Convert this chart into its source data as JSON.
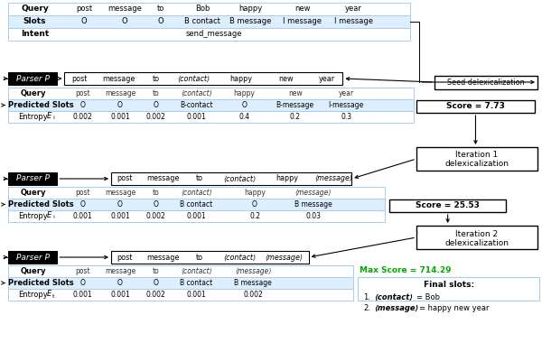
{
  "bg_color": "#ffffff",
  "light_blue": "#ddeeff",
  "dark_blue": "#aaccee",
  "top_table": {
    "query_words": [
      "post",
      "message",
      "to",
      "Bob",
      "happy",
      "new",
      "year"
    ],
    "slots": [
      "O",
      "O",
      "O",
      "B contact",
      "B message",
      "I message",
      "I message"
    ],
    "intent": "send_message"
  },
  "seed": {
    "input_words": [
      "post",
      "message",
      "to",
      "⟨contact⟩",
      "happy",
      "new",
      "year"
    ]
  },
  "iter0": {
    "query_words": [
      "post",
      "message",
      "to",
      "⟨contact⟩",
      "happy",
      "new",
      "year"
    ],
    "pred_slots": [
      "O",
      "O",
      "O",
      "B-contact",
      "O",
      "B-message",
      "I-message"
    ],
    "entropy": [
      "0.002",
      "0.001",
      "0.002",
      "0.001",
      "0.4",
      "0.2",
      "0.3"
    ],
    "score": "Score = 7.73"
  },
  "iter1": {
    "input_words": [
      "post",
      "message",
      "to",
      "⟨contact⟩",
      "happy",
      "⟨message⟩"
    ],
    "query_words": [
      "post",
      "message",
      "to",
      "⟨contact⟩",
      "happy",
      "⟨message⟩"
    ],
    "pred_slots": [
      "O",
      "O",
      "O",
      "B contact",
      "O",
      "B message"
    ],
    "entropy": [
      "0.001",
      "0.001",
      "0.002",
      "0.001",
      "0.2",
      "0.03"
    ],
    "score": "Score = 25.53"
  },
  "iter2": {
    "input_words": [
      "post",
      "message",
      "to",
      "⟨contact⟩",
      "⟨message⟩"
    ],
    "query_words": [
      "post",
      "message",
      "to",
      "⟨contact⟩",
      "⟨message⟩"
    ],
    "pred_slots": [
      "O",
      "O",
      "O",
      "B contact",
      "B message"
    ],
    "entropy": [
      "0.001",
      "0.001",
      "0.002",
      "0.001",
      "0.002"
    ],
    "max_score": "Max Score = 714.29",
    "final_slots_1": "⟨contact⟩ = Bob",
    "final_slots_2": "⟨message⟩ = happy new year"
  }
}
